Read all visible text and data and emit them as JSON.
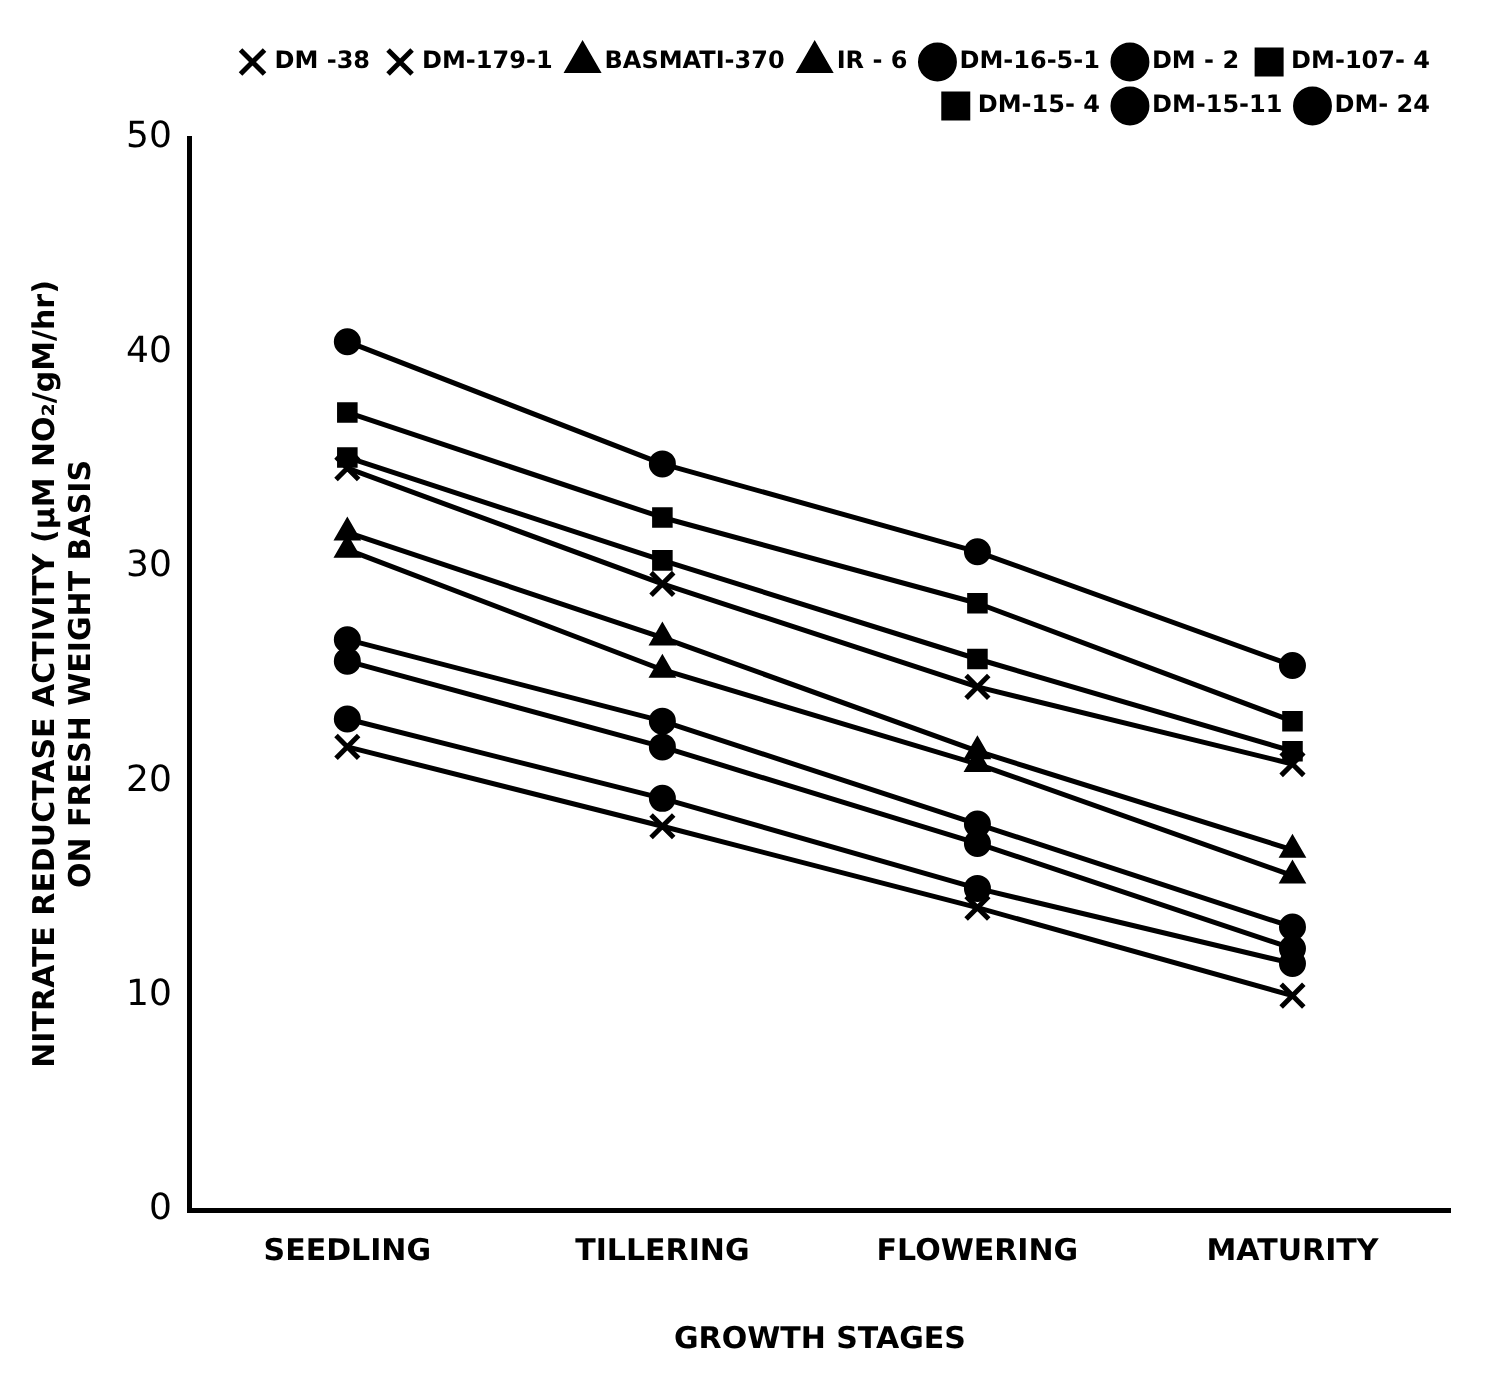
{
  "chart_data": {
    "type": "line",
    "xlabel": "GROWTH STAGES",
    "ylabel": "NITRATE REDUCTASE ACTIVITY (μM NO₂/gM/hr)\nON FRESH WEIGHT BASIS",
    "categories": [
      "SEEDLING",
      "TILLERING",
      "FLOWERING",
      "MATURITY"
    ],
    "ylim": [
      0,
      50
    ],
    "yticks": [
      0,
      10,
      20,
      30,
      40,
      50
    ],
    "grid": false,
    "legend": "top right",
    "line_style": "solid",
    "series": [
      {
        "name": "BASMATI-370",
        "color": "#000000",
        "marker": "triangle",
        "values": [
          31.6,
          26.7,
          21.4,
          16.8
        ]
      },
      {
        "name": "IR - 6",
        "color": "#000000",
        "marker": "triangle",
        "values": [
          30.8,
          25.2,
          20.8,
          15.6
        ]
      },
      {
        "name": "DM-16-5-1",
        "color": "#000000",
        "marker": "circle",
        "values": [
          25.6,
          21.6,
          17.1,
          12.2
        ]
      },
      {
        "name": "DM - 2",
        "color": "#000000",
        "marker": "circle",
        "values": [
          26.6,
          22.8,
          18.0,
          13.2
        ]
      },
      {
        "name": "DM-107- 4",
        "color": "#000000",
        "marker": "square",
        "values": [
          35.1,
          30.3,
          25.7,
          21.4
        ]
      },
      {
        "name": "DM-15- 4",
        "color": "#000000",
        "marker": "square",
        "values": [
          37.2,
          32.3,
          28.3,
          22.8
        ]
      },
      {
        "name": "DM-15-11",
        "color": "#000000",
        "marker": "circle",
        "values": [
          22.9,
          19.2,
          15.0,
          11.5
        ]
      },
      {
        "name": "DM- 24",
        "color": "#000000",
        "marker": "circle",
        "values": [
          40.5,
          34.8,
          30.7,
          25.4
        ]
      },
      {
        "name": "DM -38",
        "color": "#000000",
        "marker": "cross",
        "values": [
          34.6,
          29.2,
          24.4,
          20.8
        ]
      },
      {
        "name": "DM-179-1",
        "color": "#000000",
        "marker": "cross",
        "values": [
          21.6,
          17.9,
          14.1,
          10.0
        ]
      }
    ]
  }
}
